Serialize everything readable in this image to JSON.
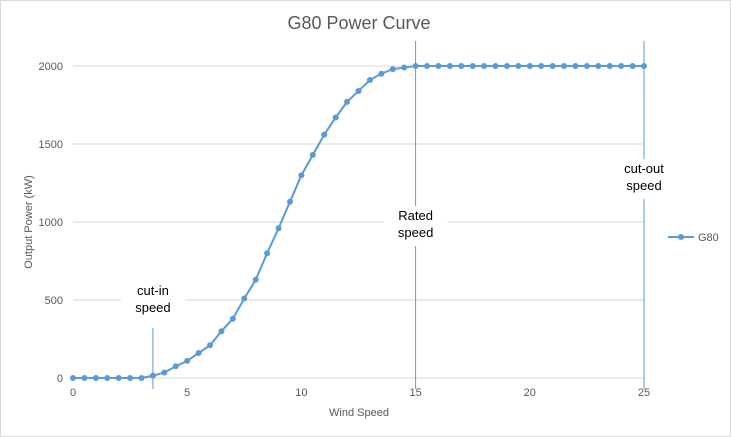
{
  "chart_data": {
    "type": "line",
    "title": "G80 Power Curve",
    "xlabel": "Wind Speed",
    "ylabel": "Output Power (kW)",
    "xlim": [
      0,
      25
    ],
    "ylim": [
      0,
      2000
    ],
    "x_ticks": [
      0,
      5,
      10,
      15,
      20,
      25
    ],
    "y_ticks": [
      0,
      500,
      1000,
      1500,
      2000
    ],
    "grid": "horizontal",
    "legend": "right",
    "series": [
      {
        "name": "G80",
        "color": "#5b9bd5",
        "x": [
          0,
          0.5,
          1,
          1.5,
          2,
          2.5,
          3,
          3.5,
          4,
          4.5,
          5,
          5.5,
          6,
          6.5,
          7,
          7.5,
          8,
          8.5,
          9,
          9.5,
          10,
          10.5,
          11,
          11.5,
          12,
          12.5,
          13,
          13.5,
          14,
          14.5,
          15,
          15.5,
          16,
          16.5,
          17,
          17.5,
          18,
          18.5,
          19,
          19.5,
          20,
          20.5,
          21,
          21.5,
          22,
          22.5,
          23,
          23.5,
          24,
          24.5,
          25
        ],
        "y": [
          0,
          0,
          0,
          0,
          0,
          0,
          0,
          15,
          35,
          75,
          110,
          160,
          210,
          300,
          380,
          510,
          630,
          800,
          960,
          1130,
          1300,
          1430,
          1560,
          1670,
          1770,
          1840,
          1910,
          1950,
          1980,
          1990,
          2000,
          2000,
          2000,
          2000,
          2000,
          2000,
          2000,
          2000,
          2000,
          2000,
          2000,
          2000,
          2000,
          2000,
          2000,
          2000,
          2000,
          2000,
          2000,
          2000,
          2000
        ]
      }
    ],
    "annotations": [
      {
        "id": "cut-in",
        "x": 3.5,
        "lines": [
          "cut-in",
          "speed"
        ]
      },
      {
        "id": "rated",
        "x": 15,
        "lines": [
          "Rated",
          "speed"
        ]
      },
      {
        "id": "cut-out",
        "x": 25,
        "lines": [
          "cut-out",
          "speed"
        ]
      }
    ]
  }
}
